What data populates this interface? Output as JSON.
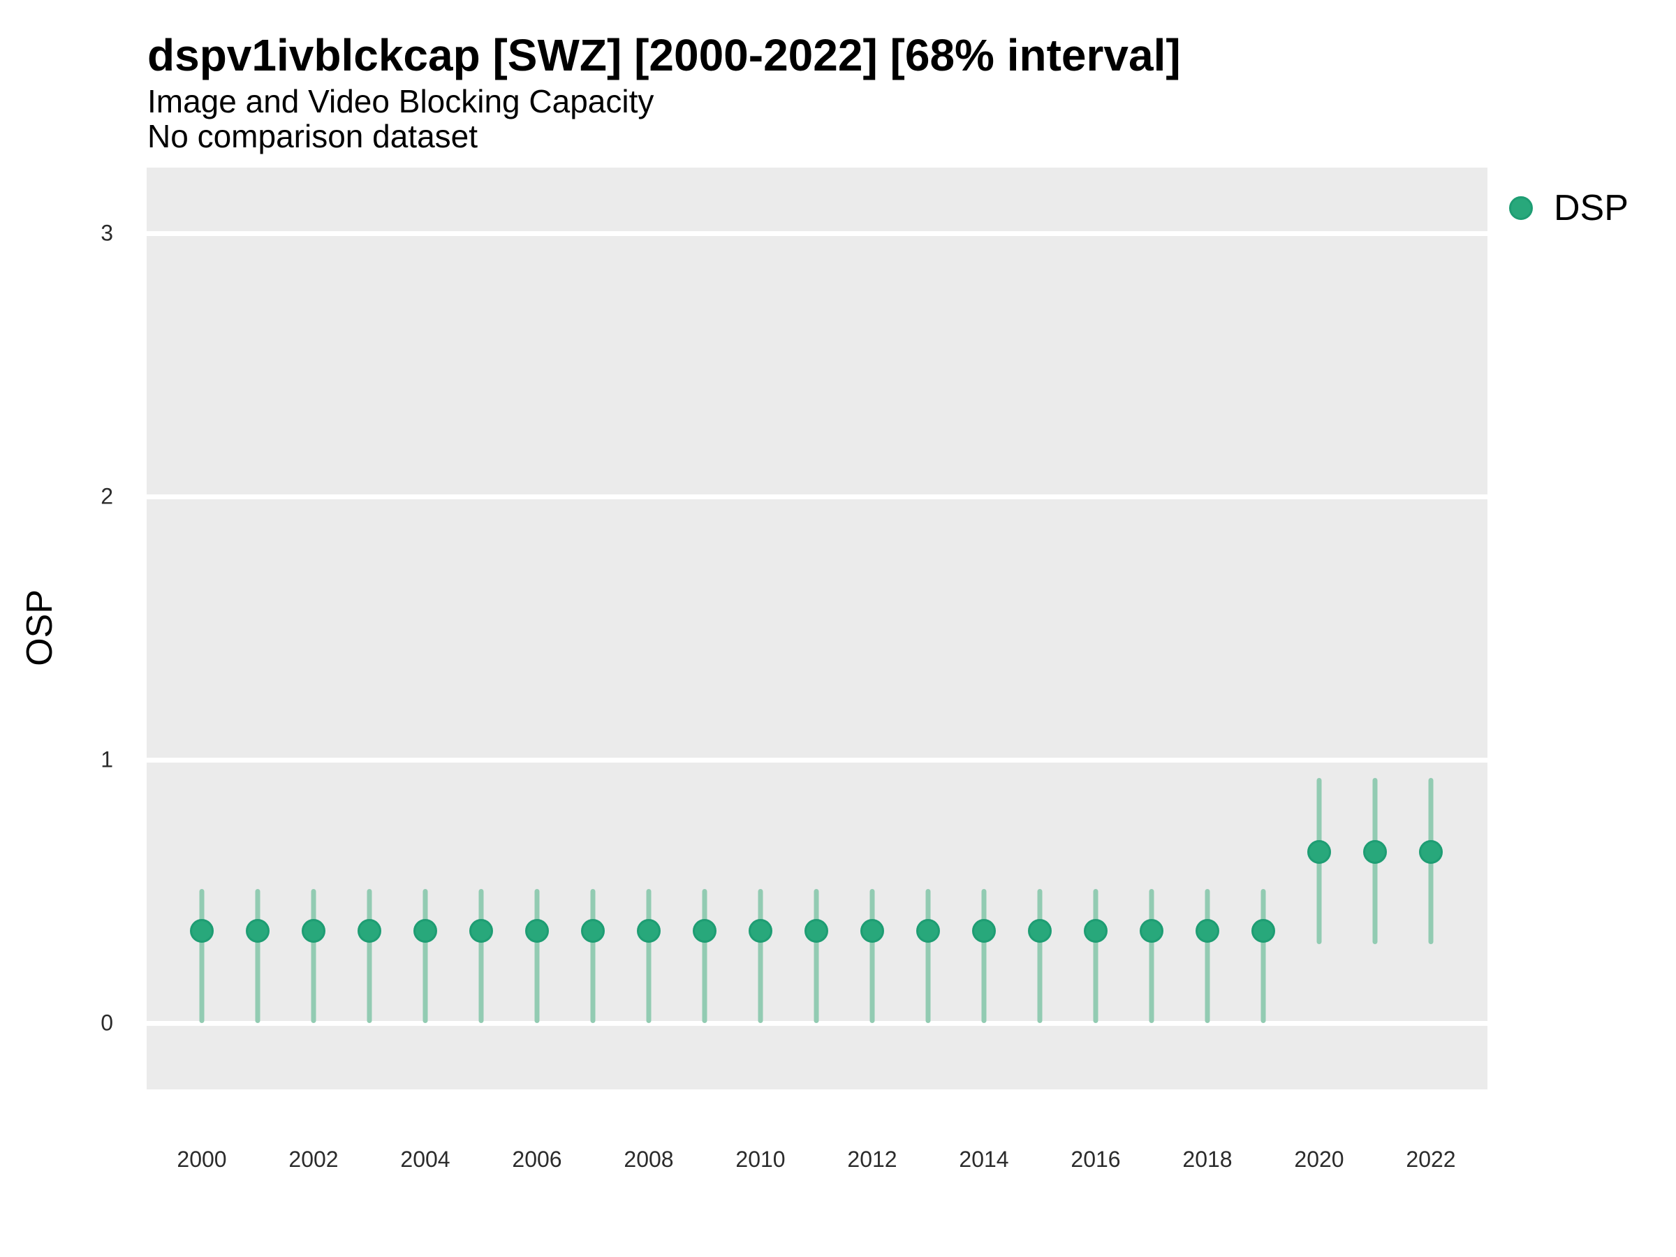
{
  "chart_data": {
    "type": "scatter",
    "title": "dspv1ivblckcap [SWZ] [2000-2022] [68% interval]",
    "subtitle": "Image and Video Blocking Capacity",
    "note": "No comparison dataset",
    "ylabel": "OSP",
    "xlabel": "",
    "interval": "68%",
    "ylim": [
      -0.25,
      3.25
    ],
    "xlim": [
      1999,
      2023
    ],
    "y_ticks": [
      0,
      1,
      2,
      3
    ],
    "x_ticks": [
      2000,
      2002,
      2004,
      2006,
      2008,
      2010,
      2012,
      2014,
      2016,
      2018,
      2020,
      2022
    ],
    "grid": "horizontal-major-only",
    "legend_position": "top-right",
    "legend": [
      {
        "label": "DSP",
        "color": "#2aa87c"
      }
    ],
    "series": [
      {
        "name": "DSP",
        "point_color": "#28a87b",
        "point_edge_color": "#1e9d73",
        "interval_color": "#92cbb2",
        "points": [
          {
            "x": 2000,
            "y": 0.35,
            "lo": 0.0,
            "hi": 0.51
          },
          {
            "x": 2001,
            "y": 0.35,
            "lo": 0.0,
            "hi": 0.51
          },
          {
            "x": 2002,
            "y": 0.35,
            "lo": 0.0,
            "hi": 0.51
          },
          {
            "x": 2003,
            "y": 0.35,
            "lo": 0.0,
            "hi": 0.51
          },
          {
            "x": 2004,
            "y": 0.35,
            "lo": 0.0,
            "hi": 0.51
          },
          {
            "x": 2005,
            "y": 0.35,
            "lo": 0.0,
            "hi": 0.51
          },
          {
            "x": 2006,
            "y": 0.35,
            "lo": 0.0,
            "hi": 0.51
          },
          {
            "x": 2007,
            "y": 0.35,
            "lo": 0.0,
            "hi": 0.51
          },
          {
            "x": 2008,
            "y": 0.35,
            "lo": 0.0,
            "hi": 0.51
          },
          {
            "x": 2009,
            "y": 0.35,
            "lo": 0.0,
            "hi": 0.51
          },
          {
            "x": 2010,
            "y": 0.35,
            "lo": 0.0,
            "hi": 0.51
          },
          {
            "x": 2011,
            "y": 0.35,
            "lo": 0.0,
            "hi": 0.51
          },
          {
            "x": 2012,
            "y": 0.35,
            "lo": 0.0,
            "hi": 0.51
          },
          {
            "x": 2013,
            "y": 0.35,
            "lo": 0.0,
            "hi": 0.51
          },
          {
            "x": 2014,
            "y": 0.35,
            "lo": 0.0,
            "hi": 0.51
          },
          {
            "x": 2015,
            "y": 0.35,
            "lo": 0.0,
            "hi": 0.51
          },
          {
            "x": 2016,
            "y": 0.35,
            "lo": 0.0,
            "hi": 0.51
          },
          {
            "x": 2017,
            "y": 0.35,
            "lo": 0.0,
            "hi": 0.51
          },
          {
            "x": 2018,
            "y": 0.35,
            "lo": 0.0,
            "hi": 0.51
          },
          {
            "x": 2019,
            "y": 0.35,
            "lo": 0.0,
            "hi": 0.51
          },
          {
            "x": 2020,
            "y": 0.65,
            "lo": 0.3,
            "hi": 0.93
          },
          {
            "x": 2021,
            "y": 0.65,
            "lo": 0.3,
            "hi": 0.93
          },
          {
            "x": 2022,
            "y": 0.65,
            "lo": 0.3,
            "hi": 0.93
          }
        ]
      }
    ]
  },
  "colors": {
    "panel_bg": "#ebebeb",
    "gridline": "#ffffff",
    "text": "#000000",
    "tick_text": "#2b2b2b"
  }
}
